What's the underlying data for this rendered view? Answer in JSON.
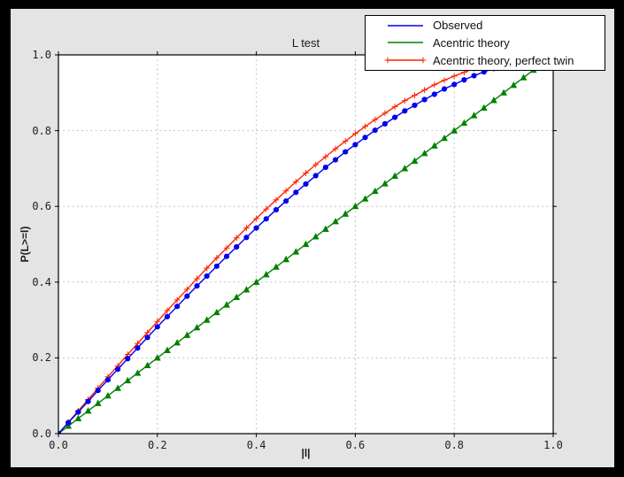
{
  "window": {
    "outer_bg": "#000000",
    "figure_bg": "#e4e4e4",
    "axes_bg": "#ffffff",
    "grid_color": "#c2c2c2",
    "spine_color": "#000000"
  },
  "chart_data": {
    "type": "line",
    "title": "L test",
    "xlabel": "|l|",
    "ylabel": "P(L>=l)",
    "xlim": [
      0.0,
      1.0
    ],
    "ylim": [
      0.0,
      1.0
    ],
    "grid": true,
    "grid_style": "dashed",
    "legend_position": "upper right",
    "xticks": {
      "values": [
        0.0,
        0.2,
        0.4,
        0.6,
        0.8,
        1.0
      ],
      "labels": [
        "0.0",
        "0.2",
        "0.4",
        "0.6",
        "0.8",
        "1.0"
      ]
    },
    "yticks": {
      "values": [
        0.0,
        0.2,
        0.4,
        0.6,
        0.8,
        1.0
      ],
      "labels": [
        "0.0",
        "0.2",
        "0.4",
        "0.6",
        "0.8",
        "1.0"
      ]
    },
    "x": [
      0.0,
      0.02,
      0.04,
      0.06,
      0.08,
      0.1,
      0.12,
      0.14,
      0.16,
      0.18,
      0.2,
      0.22,
      0.24,
      0.26,
      0.28,
      0.3,
      0.32,
      0.34,
      0.36,
      0.38,
      0.4,
      0.42,
      0.44,
      0.46,
      0.48,
      0.5,
      0.52,
      0.54,
      0.56,
      0.58,
      0.6,
      0.62,
      0.64,
      0.66,
      0.68,
      0.7,
      0.72,
      0.74,
      0.76,
      0.78,
      0.8,
      0.82,
      0.84,
      0.86,
      0.88,
      0.9,
      0.92,
      0.94,
      0.96,
      0.98,
      1.0
    ],
    "series": [
      {
        "name": "Observed",
        "color": "#0000ee",
        "marker": "circle",
        "values": [
          0.0,
          0.029,
          0.057,
          0.085,
          0.114,
          0.142,
          0.17,
          0.198,
          0.226,
          0.254,
          0.282,
          0.309,
          0.336,
          0.363,
          0.39,
          0.416,
          0.442,
          0.468,
          0.493,
          0.518,
          0.543,
          0.567,
          0.591,
          0.614,
          0.637,
          0.659,
          0.681,
          0.703,
          0.723,
          0.744,
          0.763,
          0.782,
          0.801,
          0.818,
          0.835,
          0.852,
          0.867,
          0.882,
          0.896,
          0.91,
          0.922,
          0.934,
          0.945,
          0.955,
          0.964,
          0.973,
          0.98,
          0.987,
          0.992,
          0.996,
          1.0
        ]
      },
      {
        "name": "Acentric theory",
        "color": "#008000",
        "marker": "triangle-up",
        "values": [
          0.0,
          0.02,
          0.04,
          0.06,
          0.08,
          0.1,
          0.12,
          0.14,
          0.16,
          0.18,
          0.2,
          0.22,
          0.24,
          0.26,
          0.28,
          0.3,
          0.32,
          0.34,
          0.36,
          0.38,
          0.4,
          0.42,
          0.44,
          0.46,
          0.48,
          0.5,
          0.52,
          0.54,
          0.56,
          0.58,
          0.6,
          0.62,
          0.64,
          0.66,
          0.68,
          0.7,
          0.72,
          0.74,
          0.76,
          0.78,
          0.8,
          0.82,
          0.84,
          0.86,
          0.88,
          0.9,
          0.92,
          0.94,
          0.96,
          0.98,
          1.0
        ]
      },
      {
        "name": "Acentric theory, perfect twin",
        "color": "#ff2200",
        "marker": "plus",
        "values": [
          0.0,
          0.03,
          0.06,
          0.09,
          0.12,
          0.15,
          0.179,
          0.209,
          0.238,
          0.267,
          0.296,
          0.325,
          0.353,
          0.381,
          0.409,
          0.437,
          0.464,
          0.49,
          0.517,
          0.543,
          0.568,
          0.593,
          0.617,
          0.641,
          0.665,
          0.688,
          0.71,
          0.731,
          0.752,
          0.772,
          0.792,
          0.811,
          0.829,
          0.846,
          0.863,
          0.879,
          0.893,
          0.907,
          0.921,
          0.933,
          0.944,
          0.954,
          0.964,
          0.972,
          0.979,
          0.986,
          0.991,
          0.995,
          0.998,
          0.999,
          1.0
        ]
      }
    ]
  }
}
